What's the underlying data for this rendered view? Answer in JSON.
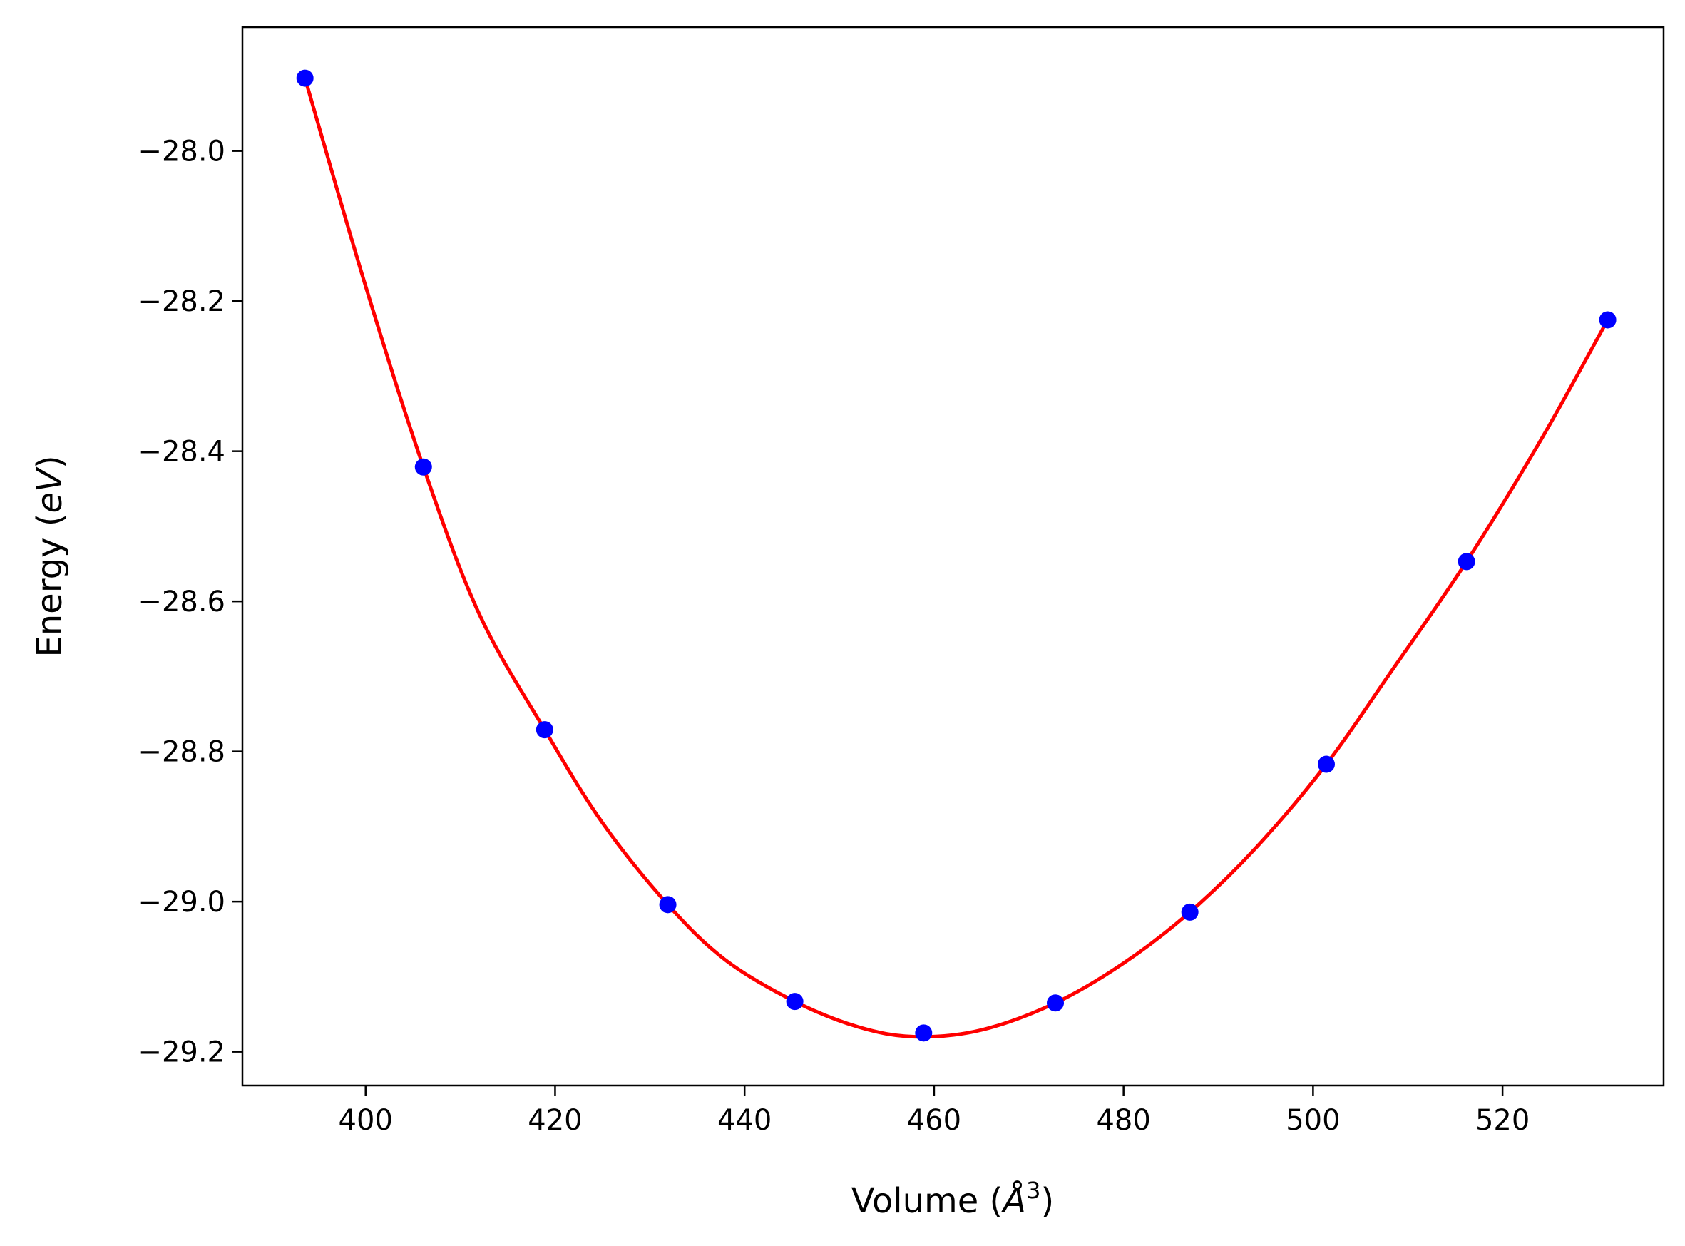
{
  "chart_data": {
    "type": "scatter",
    "xlabel_text": "Volume (",
    "xlabel_symbol": "Å",
    "xlabel_sup": "3",
    "xlabel_close": ")",
    "ylabel_text": "Energy (",
    "ylabel_unit": "eV",
    "ylabel_close": ")",
    "xlim": [
      387,
      537
    ],
    "ylim": [
      -29.245,
      -27.835
    ],
    "xticks": [
      400,
      420,
      440,
      460,
      480,
      500,
      520
    ],
    "xtick_labels": [
      "400",
      "420",
      "440",
      "460",
      "480",
      "500",
      "520"
    ],
    "yticks": [
      -28.0,
      -28.2,
      -28.4,
      -28.6,
      -28.8,
      -29.0,
      -29.2
    ],
    "ytick_labels": [
      "−28.0",
      "−28.2",
      "−28.4",
      "−28.6",
      "−28.8",
      "−29.0",
      "−29.2"
    ],
    "grid": false,
    "legend": "none",
    "series": [
      {
        "kind": "points",
        "color": "#0000ff",
        "x": [
          393.6,
          406.1,
          418.9,
          431.9,
          445.3,
          458.9,
          472.8,
          487.0,
          501.4,
          516.2,
          531.1
        ],
        "y": [
          -27.903,
          -28.421,
          -28.771,
          -29.004,
          -29.133,
          -29.175,
          -29.135,
          -29.014,
          -28.817,
          -28.547,
          -28.225
        ]
      },
      {
        "kind": "fit-line",
        "color": "#ff0000",
        "x": [
          393.6,
          400,
          406.1,
          412,
          418.9,
          425,
          431.9,
          438,
          445.3,
          452,
          458.0,
          465,
          472.8,
          480,
          487.0,
          494,
          501.4,
          508,
          516.2,
          524,
          531.1
        ],
        "y": [
          -27.903,
          -28.18,
          -28.421,
          -28.617,
          -28.771,
          -28.895,
          -29.004,
          -29.078,
          -29.133,
          -29.167,
          -29.18,
          -29.171,
          -29.135,
          -29.082,
          -29.014,
          -28.928,
          -28.817,
          -28.698,
          -28.547,
          -28.386,
          -28.225
        ]
      }
    ]
  }
}
